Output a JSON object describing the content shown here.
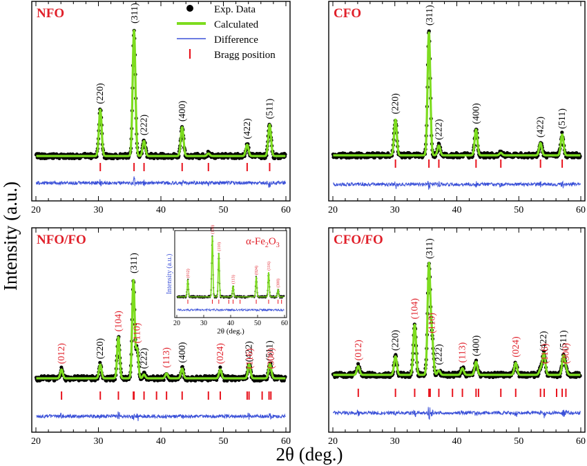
{
  "figure": {
    "ylabel": "Intensity (a.u.)",
    "xlabel": "2θ (deg.)"
  },
  "colors": {
    "exp": "#000000",
    "calc": "#7ddc1f",
    "diff": "#3a50d8",
    "bragg": "#e8141e",
    "impurity_label": "#e0202a",
    "axis": "#000000"
  },
  "legend": {
    "placement": "top-right of NFO panel",
    "entries": [
      {
        "key": "exp",
        "label": "Exp. Data",
        "marker": "filled-circle"
      },
      {
        "key": "calc",
        "label": "Calculated",
        "marker": "thick-line"
      },
      {
        "key": "diff",
        "label": "Difference",
        "marker": "thin-line"
      },
      {
        "key": "bragg",
        "label": "Bragg position",
        "marker": "vertical-tick"
      }
    ]
  },
  "chart_data": [
    {
      "type": "line",
      "title": "NFO",
      "xlim": [
        20,
        60
      ],
      "xticks": [
        20,
        30,
        40,
        50,
        60
      ],
      "peaks": [
        {
          "x": 30.3,
          "height": 0.37,
          "label": "(220)",
          "kind": "spinel"
        },
        {
          "x": 35.7,
          "height": 1.0,
          "label": "(311)",
          "kind": "spinel"
        },
        {
          "x": 37.3,
          "height": 0.12,
          "label": "(222)",
          "kind": "spinel"
        },
        {
          "x": 43.4,
          "height": 0.23,
          "label": "(400)",
          "kind": "spinel"
        },
        {
          "x": 47.6,
          "height": 0.02,
          "label": "",
          "kind": "spinel"
        },
        {
          "x": 53.8,
          "height": 0.09,
          "label": "(422)",
          "kind": "spinel"
        },
        {
          "x": 57.4,
          "height": 0.25,
          "label": "(511)",
          "kind": "spinel"
        }
      ],
      "bragg_positions": [
        30.3,
        35.7,
        37.3,
        43.4,
        47.6,
        53.8,
        57.4
      ]
    },
    {
      "type": "line",
      "title": "CFO",
      "xlim": [
        20,
        60
      ],
      "xticks": [
        20,
        30,
        40,
        50,
        60
      ],
      "peaks": [
        {
          "x": 30.1,
          "height": 0.29,
          "label": "(220)",
          "kind": "spinel"
        },
        {
          "x": 35.5,
          "height": 1.0,
          "label": "(311)",
          "kind": "spinel"
        },
        {
          "x": 37.1,
          "height": 0.08,
          "label": "(222)",
          "kind": "spinel"
        },
        {
          "x": 43.1,
          "height": 0.21,
          "label": "(400)",
          "kind": "spinel"
        },
        {
          "x": 47.1,
          "height": 0.02,
          "label": "",
          "kind": "spinel"
        },
        {
          "x": 53.5,
          "height": 0.1,
          "label": "(422)",
          "kind": "spinel"
        },
        {
          "x": 57.0,
          "height": 0.17,
          "label": "(511)",
          "kind": "spinel"
        }
      ],
      "bragg_positions": [
        30.1,
        35.5,
        37.1,
        43.1,
        47.1,
        53.5,
        57.0
      ]
    },
    {
      "type": "line",
      "title": "NFO/FO",
      "xlim": [
        20,
        60
      ],
      "xticks": [
        20,
        30,
        40,
        50,
        60
      ],
      "peaks": [
        {
          "x": 24.1,
          "height": 0.09,
          "label": "(012)",
          "kind": "hematite"
        },
        {
          "x": 30.3,
          "height": 0.14,
          "label": "(220)",
          "kind": "spinel"
        },
        {
          "x": 33.2,
          "height": 0.42,
          "label": "(104)",
          "kind": "hematite"
        },
        {
          "x": 35.6,
          "height": 1.0,
          "label": "(311)",
          "kind": "spinel"
        },
        {
          "x": 36.2,
          "height": 0.3,
          "label": "(110)",
          "kind": "hematite"
        },
        {
          "x": 37.3,
          "height": 0.04,
          "label": "(222)",
          "kind": "spinel"
        },
        {
          "x": 40.9,
          "height": 0.05,
          "label": "(113)",
          "kind": "hematite"
        },
        {
          "x": 43.4,
          "height": 0.1,
          "label": "(400)",
          "kind": "spinel"
        },
        {
          "x": 49.5,
          "height": 0.09,
          "label": "(024)",
          "kind": "hematite"
        },
        {
          "x": 54.1,
          "height": 0.11,
          "label": "(422)",
          "kind": "spinel"
        },
        {
          "x": 54.2,
          "height": 0.04,
          "label": "(116)",
          "kind": "hematite"
        },
        {
          "x": 57.4,
          "height": 0.12,
          "label": "(511)",
          "kind": "spinel"
        },
        {
          "x": 57.6,
          "height": 0.04,
          "label": "(300)",
          "kind": "hematite"
        }
      ],
      "bragg_positions": [
        24.1,
        30.3,
        33.2,
        35.6,
        35.7,
        37.3,
        39.3,
        40.9,
        43.4,
        47.6,
        49.5,
        53.8,
        54.1,
        56.2,
        57.3,
        57.6
      ],
      "inset": {
        "title": "α-Fe2O3",
        "title_text": "α-Fe",
        "title_sub": "2",
        "title_text2": "O",
        "title_sub2": "3",
        "ylabel": "Intensity (a.u.)",
        "xlabel": "2θ (deg.)",
        "xlim": [
          20,
          60
        ],
        "xticks": [
          20,
          30,
          40,
          50,
          60
        ],
        "peaks": [
          {
            "x": 24.1,
            "height": 0.28,
            "label": "(012)"
          },
          {
            "x": 33.2,
            "height": 1.0,
            "label": "(104)"
          },
          {
            "x": 35.6,
            "height": 0.72,
            "label": "(110)"
          },
          {
            "x": 40.9,
            "height": 0.18,
            "label": "(113)"
          },
          {
            "x": 49.5,
            "height": 0.33,
            "label": "(024)"
          },
          {
            "x": 54.1,
            "height": 0.4,
            "label": "(116)"
          },
          {
            "x": 57.6,
            "height": 0.12,
            "label": "(300)"
          }
        ],
        "bragg_positions": [
          24.1,
          33.2,
          35.6,
          39.3,
          40.9,
          43.5,
          49.5,
          54.1,
          57.6,
          58.9
        ]
      }
    },
    {
      "type": "line",
      "title": "CFO/FO",
      "xlim": [
        20,
        60
      ],
      "xticks": [
        20,
        30,
        40,
        50,
        60
      ],
      "peaks": [
        {
          "x": 24.1,
          "height": 0.08,
          "label": "(012)",
          "kind": "hematite"
        },
        {
          "x": 30.1,
          "height": 0.17,
          "label": "(220)",
          "kind": "spinel"
        },
        {
          "x": 33.2,
          "height": 0.46,
          "label": "(104)",
          "kind": "hematite"
        },
        {
          "x": 35.5,
          "height": 1.0,
          "label": "(311)",
          "kind": "spinel"
        },
        {
          "x": 36.0,
          "height": 0.33,
          "label": "(110)",
          "kind": "hematite"
        },
        {
          "x": 37.1,
          "height": 0.04,
          "label": "(222)",
          "kind": "spinel"
        },
        {
          "x": 40.9,
          "height": 0.06,
          "label": "(113)",
          "kind": "hematite"
        },
        {
          "x": 43.1,
          "height": 0.12,
          "label": "(400)",
          "kind": "spinel"
        },
        {
          "x": 49.5,
          "height": 0.11,
          "label": "(024)",
          "kind": "hematite"
        },
        {
          "x": 53.5,
          "height": 0.05,
          "label": "",
          "kind": "spinel"
        },
        {
          "x": 54.0,
          "height": 0.16,
          "label": "(422)",
          "kind": "spinel"
        },
        {
          "x": 54.2,
          "height": 0.05,
          "label": "(116)",
          "kind": "hematite"
        },
        {
          "x": 57.2,
          "height": 0.17,
          "label": "(511)",
          "kind": "spinel"
        },
        {
          "x": 57.6,
          "height": 0.05,
          "label": "(300)",
          "kind": "hematite"
        }
      ],
      "bragg_positions": [
        24.1,
        30.1,
        33.2,
        35.5,
        35.7,
        37.1,
        39.3,
        40.9,
        43.1,
        43.5,
        47.1,
        49.5,
        53.5,
        54.1,
        56.1,
        57.0,
        57.6
      ]
    }
  ]
}
